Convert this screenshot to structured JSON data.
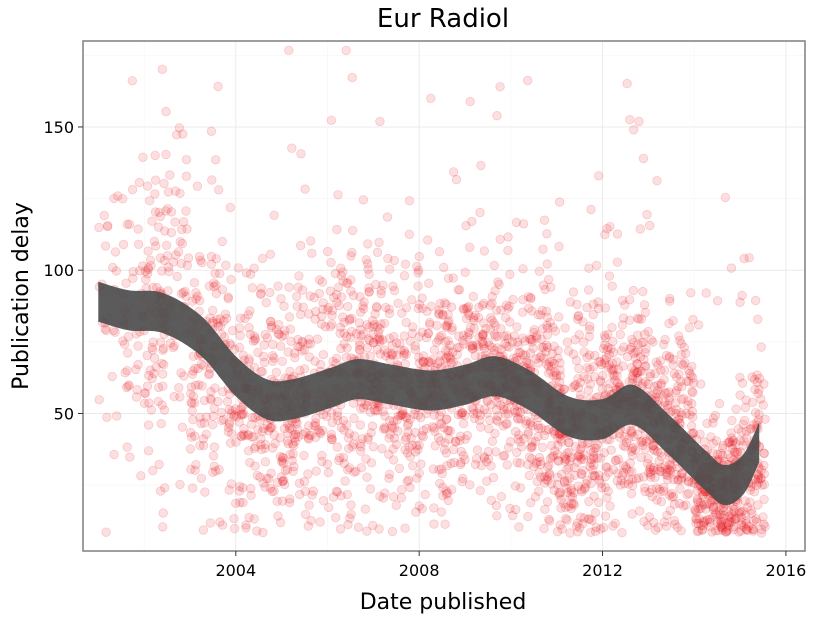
{
  "chart_data": {
    "type": "scatter",
    "title": "Eur Radiol",
    "xlabel": "Date published",
    "ylabel": "Publication delay",
    "x_ticks": [
      2004,
      2008,
      2012,
      2016
    ],
    "y_ticks": [
      50,
      100,
      150
    ],
    "xlim": [
      "2000-09-01",
      "2016-06-01"
    ],
    "ylim": [
      2,
      180
    ],
    "grid": true,
    "legend": "none",
    "point_color": "#e8000b",
    "point_opacity": 0.12,
    "smooth_color": "#4d4d4d",
    "series": [
      {
        "type": "points",
        "density_per_year": [
          {
            "year": "2001",
            "n": 70,
            "center": 85,
            "spread": 28
          },
          {
            "year": "2002",
            "n": 150,
            "center": 88,
            "spread": 30
          },
          {
            "year": "2003",
            "n": 170,
            "center": 70,
            "spread": 28
          },
          {
            "year": "2004",
            "n": 180,
            "center": 52,
            "spread": 22
          },
          {
            "year": "2005",
            "n": 180,
            "center": 55,
            "spread": 22
          },
          {
            "year": "2006",
            "n": 210,
            "center": 62,
            "spread": 24
          },
          {
            "year": "2007",
            "n": 200,
            "center": 60,
            "spread": 22
          },
          {
            "year": "2008",
            "n": 220,
            "center": 58,
            "spread": 20
          },
          {
            "year": "2009",
            "n": 230,
            "center": 62,
            "spread": 20
          },
          {
            "year": "2010",
            "n": 240,
            "center": 55,
            "spread": 22
          },
          {
            "year": "2011",
            "n": 250,
            "center": 42,
            "spread": 20
          },
          {
            "year": "2012",
            "n": 260,
            "center": 52,
            "spread": 22
          },
          {
            "year": "2013",
            "n": 240,
            "center": 42,
            "spread": 18
          },
          {
            "year": "2014",
            "n": 260,
            "center": 24,
            "spread": 12
          },
          {
            "year": "2015",
            "n": 220,
            "center": 30,
            "spread": 16
          }
        ]
      },
      {
        "type": "smooth",
        "points": [
          {
            "x": "2001-01-01",
            "y": 89
          },
          {
            "x": "2001-09-01",
            "y": 86
          },
          {
            "x": "2002-06-01",
            "y": 85
          },
          {
            "x": "2003-04-01",
            "y": 77
          },
          {
            "x": "2004-01-01",
            "y": 63
          },
          {
            "x": "2004-09-01",
            "y": 55
          },
          {
            "x": "2005-04-01",
            "y": 55
          },
          {
            "x": "2006-02-01",
            "y": 59
          },
          {
            "x": "2006-09-01",
            "y": 62
          },
          {
            "x": "2007-06-01",
            "y": 60
          },
          {
            "x": "2008-04-01",
            "y": 58
          },
          {
            "x": "2009-01-01",
            "y": 60
          },
          {
            "x": "2009-09-01",
            "y": 63
          },
          {
            "x": "2010-06-01",
            "y": 58
          },
          {
            "x": "2011-04-01",
            "y": 49
          },
          {
            "x": "2012-01-01",
            "y": 48
          },
          {
            "x": "2012-09-01",
            "y": 53
          },
          {
            "x": "2013-06-01",
            "y": 43
          },
          {
            "x": "2014-04-01",
            "y": 30
          },
          {
            "x": "2014-09-01",
            "y": 25
          },
          {
            "x": "2015-02-01",
            "y": 29
          },
          {
            "x": "2015-06-01",
            "y": 40
          }
        ],
        "band_halfwidth": 7
      }
    ]
  }
}
